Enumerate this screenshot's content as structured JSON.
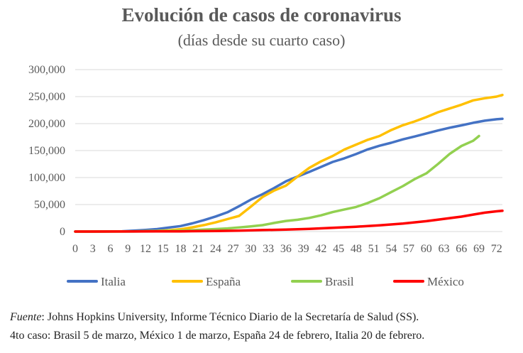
{
  "chart_data": {
    "type": "line",
    "title": "Evolución de casos de coronavirus",
    "subtitle": "(días desde su cuarto caso)",
    "xlabel": "",
    "ylabel": "",
    "xlim": [
      0,
      73
    ],
    "ylim": [
      0,
      300000
    ],
    "grid": true,
    "legend": "bottom",
    "x_ticks": [
      0,
      3,
      6,
      9,
      12,
      15,
      18,
      21,
      24,
      27,
      30,
      33,
      36,
      39,
      42,
      45,
      48,
      51,
      54,
      57,
      60,
      63,
      66,
      69,
      72
    ],
    "y_ticks": [
      0,
      50000,
      100000,
      150000,
      200000,
      250000,
      300000
    ],
    "y_tick_labels": [
      "0",
      "50,000",
      "100,000",
      "150,000",
      "200,000",
      "250,000",
      "300,000"
    ],
    "series": [
      {
        "name": "Italia",
        "color": "#4472C4",
        "x": [
          0,
          5,
          8,
          10,
          12,
          14,
          16,
          18,
          20,
          22,
          24,
          26,
          28,
          30,
          32,
          34,
          36,
          38,
          40,
          42,
          44,
          46,
          48,
          50,
          52,
          54,
          56,
          58,
          60,
          62,
          64,
          66,
          68,
          70,
          72,
          73
        ],
        "y": [
          0,
          100,
          500,
          1700,
          3000,
          4600,
          7400,
          10100,
          15100,
          21200,
          27900,
          35700,
          47000,
          59100,
          69200,
          80600,
          93000,
          102000,
          110500,
          119800,
          128900,
          135600,
          143600,
          152300,
          158900,
          164500,
          170800,
          176100,
          181700,
          187300,
          192400,
          196700,
          201500,
          205400,
          208000,
          209000
        ]
      },
      {
        "name": "España",
        "color": "#FFC000",
        "x": [
          0,
          10,
          14,
          16,
          18,
          20,
          22,
          24,
          26,
          28,
          30,
          32,
          34,
          36,
          38,
          40,
          42,
          44,
          46,
          48,
          50,
          52,
          54,
          56,
          58,
          60,
          62,
          64,
          66,
          68,
          70,
          72,
          73
        ],
        "y": [
          0,
          300,
          1200,
          2300,
          4200,
          7800,
          12000,
          17000,
          23000,
          29000,
          46000,
          64000,
          76000,
          85000,
          102000,
          118000,
          130000,
          140000,
          152000,
          161000,
          170000,
          177000,
          188000,
          197000,
          204000,
          212000,
          221000,
          228000,
          235000,
          243000,
          247000,
          250000,
          253000
        ]
      },
      {
        "name": "Brasil",
        "color": "#92D050",
        "x": [
          0,
          10,
          14,
          18,
          20,
          22,
          24,
          26,
          28,
          30,
          32,
          34,
          36,
          38,
          40,
          42,
          44,
          46,
          48,
          50,
          52,
          54,
          56,
          58,
          60,
          62,
          64,
          66,
          68,
          69
        ],
        "y": [
          0,
          100,
          600,
          1600,
          2500,
          3700,
          4600,
          5800,
          7500,
          9500,
          11900,
          15900,
          19600,
          21900,
          25200,
          30000,
          36000,
          40900,
          45500,
          52900,
          61900,
          73200,
          84200,
          97100,
          107800,
          125200,
          144000,
          158500,
          168200,
          177000
        ]
      },
      {
        "name": "México",
        "color": "#FF0000",
        "x": [
          0,
          10,
          14,
          18,
          20,
          24,
          28,
          32,
          36,
          40,
          44,
          48,
          52,
          56,
          60,
          64,
          66,
          68,
          70,
          72,
          73
        ],
        "y": [
          0,
          100,
          200,
          400,
          600,
          1000,
          1700,
          2800,
          3600,
          5000,
          6800,
          9000,
          11500,
          14700,
          19200,
          24900,
          27600,
          31500,
          35000,
          37500,
          38500
        ]
      }
    ]
  },
  "footnote": {
    "source_label": "Fuente",
    "source_text": ": Johns Hopkins University, Informe Técnico Diario de la Secretaría de Salud (SS).",
    "line2": "4to caso: Brasil 5 de marzo, México 1 de marzo, España 24 de febrero, Italia 20 de febrero."
  }
}
